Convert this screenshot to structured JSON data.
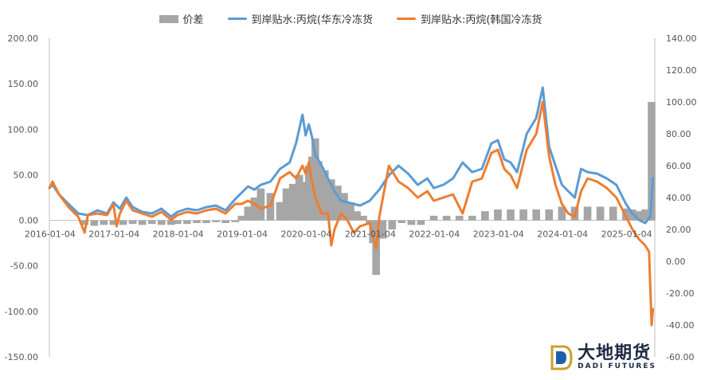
{
  "legend": {
    "spread_label": "价差",
    "east_label": "到岸贴水:丙烷(华东冷冻货",
    "korea_label": "到岸贴水:丙烷(韩国冷冻货"
  },
  "logo": {
    "cn": "大地期货",
    "en": "DADI FUTURES"
  },
  "colors": {
    "spread": "#a6a6a6",
    "east": "#5b9bd5",
    "korea": "#ed7d31"
  },
  "chart_data": {
    "type": "line",
    "x_ticks": [
      "2016-01-04",
      "2017-01-04",
      "2018-01-04",
      "2019-01-04",
      "2020-01-04",
      "2021-01-04",
      "2022-01-04",
      "2023-01-04",
      "2024-01-04",
      "2025-01-04"
    ],
    "y_left_ticks": [
      "200.00",
      "150.00",
      "100.00",
      "50.00",
      "0.00",
      "-50.00",
      "-100.00",
      "-150.00"
    ],
    "y_right_ticks": [
      "140.00",
      "120.00",
      "100.00",
      "80.00",
      "60.00",
      "40.00",
      "20.00",
      "0.00",
      "-20.00",
      "-40.00",
      "-60.00"
    ],
    "ylim_left": [
      -150,
      200
    ],
    "ylim_right": [
      -60,
      140
    ],
    "xlim": [
      2016.0,
      2025.45
    ],
    "series": [
      {
        "name": "到岸贴水:丙烷(华东冷冻货",
        "axis": "right",
        "x": [
          2016.0,
          2016.05,
          2016.15,
          2016.3,
          2016.45,
          2016.6,
          2016.75,
          2016.9,
          2017.0,
          2017.1,
          2017.2,
          2017.3,
          2017.45,
          2017.6,
          2017.75,
          2017.9,
          2018.0,
          2018.15,
          2018.3,
          2018.45,
          2018.6,
          2018.75,
          2018.9,
          2019.0,
          2019.1,
          2019.2,
          2019.3,
          2019.45,
          2019.6,
          2019.75,
          2019.85,
          2019.95,
          2020.0,
          2020.05,
          2020.1,
          2020.15,
          2020.25,
          2020.35,
          2020.45,
          2020.55,
          2020.65,
          2020.75,
          2020.85,
          2021.0,
          2021.15,
          2021.3,
          2021.45,
          2021.6,
          2021.75,
          2021.9,
          2022.0,
          2022.15,
          2022.3,
          2022.45,
          2022.6,
          2022.75,
          2022.9,
          2023.0,
          2023.1,
          2023.2,
          2023.3,
          2023.45,
          2023.6,
          2023.7,
          2023.8,
          2023.9,
          2024.0,
          2024.1,
          2024.2,
          2024.3,
          2024.4,
          2024.55,
          2024.7,
          2024.85,
          2025.0,
          2025.1,
          2025.2,
          2025.3,
          2025.38,
          2025.42
        ],
        "y": [
          46,
          48,
          42,
          36,
          30,
          29,
          32,
          30,
          37,
          33,
          40,
          34,
          31,
          30,
          33,
          28,
          31,
          33,
          32,
          34,
          35,
          32,
          39,
          43,
          47,
          45,
          48,
          50,
          58,
          62,
          74,
          92,
          79,
          86,
          78,
          67,
          60,
          52,
          44,
          38,
          37,
          36,
          35,
          38,
          45,
          54,
          60,
          55,
          48,
          52,
          46,
          48,
          52,
          62,
          56,
          58,
          74,
          76,
          64,
          62,
          56,
          80,
          90,
          109,
          72,
          60,
          48,
          44,
          40,
          58,
          56,
          55,
          52,
          48,
          36,
          30,
          26,
          24,
          28,
          52
        ]
      },
      {
        "name": "到岸贴水:丙烷(韩国冷冻货",
        "axis": "right",
        "x": [
          2016.0,
          2016.05,
          2016.15,
          2016.3,
          2016.45,
          2016.55,
          2016.6,
          2016.75,
          2016.9,
          2017.0,
          2017.05,
          2017.1,
          2017.2,
          2017.3,
          2017.45,
          2017.6,
          2017.75,
          2017.9,
          2018.0,
          2018.15,
          2018.3,
          2018.45,
          2018.6,
          2018.75,
          2018.9,
          2019.0,
          2019.1,
          2019.2,
          2019.3,
          2019.45,
          2019.6,
          2019.75,
          2019.85,
          2019.95,
          2020.0,
          2020.05,
          2020.1,
          2020.15,
          2020.25,
          2020.35,
          2020.4,
          2020.45,
          2020.55,
          2020.65,
          2020.75,
          2020.85,
          2021.0,
          2021.1,
          2021.15,
          2021.3,
          2021.45,
          2021.6,
          2021.75,
          2021.9,
          2022.0,
          2022.15,
          2022.3,
          2022.45,
          2022.6,
          2022.75,
          2022.9,
          2023.0,
          2023.1,
          2023.2,
          2023.3,
          2023.45,
          2023.6,
          2023.7,
          2023.8,
          2023.9,
          2024.0,
          2024.1,
          2024.2,
          2024.3,
          2024.4,
          2024.55,
          2024.7,
          2024.85,
          2025.0,
          2025.1,
          2025.2,
          2025.3,
          2025.36,
          2025.4,
          2025.42
        ],
        "y": [
          46,
          50,
          42,
          34,
          28,
          18,
          29,
          30,
          29,
          36,
          22,
          30,
          38,
          32,
          30,
          28,
          31,
          26,
          29,
          31,
          30,
          32,
          33,
          30,
          36,
          36,
          38,
          36,
          33,
          35,
          52,
          56,
          52,
          60,
          55,
          62,
          50,
          40,
          30,
          30,
          10,
          20,
          30,
          26,
          18,
          22,
          24,
          8,
          28,
          60,
          50,
          46,
          40,
          44,
          38,
          40,
          42,
          30,
          50,
          52,
          68,
          70,
          58,
          54,
          46,
          70,
          80,
          100,
          66,
          48,
          36,
          30,
          28,
          44,
          52,
          50,
          46,
          40,
          28,
          20,
          14,
          10,
          6,
          -40,
          -30
        ]
      }
    ],
    "bars": {
      "name": "价差",
      "axis": "left",
      "x": [
        2016.55,
        2016.7,
        2016.85,
        2017.0,
        2017.15,
        2017.3,
        2017.45,
        2017.6,
        2017.75,
        2017.9,
        2018.0,
        2018.15,
        2018.3,
        2018.45,
        2018.6,
        2018.75,
        2018.9,
        2019.0,
        2019.1,
        2019.2,
        2019.3,
        2019.45,
        2019.6,
        2019.7,
        2019.8,
        2019.9,
        2020.0,
        2020.05,
        2020.1,
        2020.15,
        2020.2,
        2020.3,
        2020.4,
        2020.5,
        2020.6,
        2020.7,
        2020.8,
        2020.9,
        2021.0,
        2021.05,
        2021.1,
        2021.2,
        2021.35,
        2021.5,
        2021.65,
        2021.8,
        2022.0,
        2022.2,
        2022.4,
        2022.6,
        2022.8,
        2023.0,
        2023.2,
        2023.4,
        2023.6,
        2023.8,
        2024.0,
        2024.2,
        2024.4,
        2024.6,
        2024.8,
        2025.0,
        2025.1,
        2025.2,
        2025.3,
        2025.4
      ],
      "y": [
        -5,
        -6,
        -5,
        -5,
        -5,
        -4,
        -5,
        -4,
        -5,
        -5,
        -4,
        -4,
        -3,
        -3,
        -2,
        -3,
        -2,
        5,
        15,
        25,
        35,
        30,
        20,
        35,
        40,
        50,
        42,
        60,
        70,
        90,
        65,
        55,
        45,
        38,
        30,
        20,
        10,
        5,
        -5,
        -25,
        -60,
        -20,
        -10,
        -3,
        -5,
        -5,
        5,
        5,
        5,
        5,
        10,
        12,
        12,
        12,
        12,
        12,
        15,
        15,
        15,
        15,
        15,
        13,
        12,
        10,
        12,
        130
      ]
    }
  }
}
